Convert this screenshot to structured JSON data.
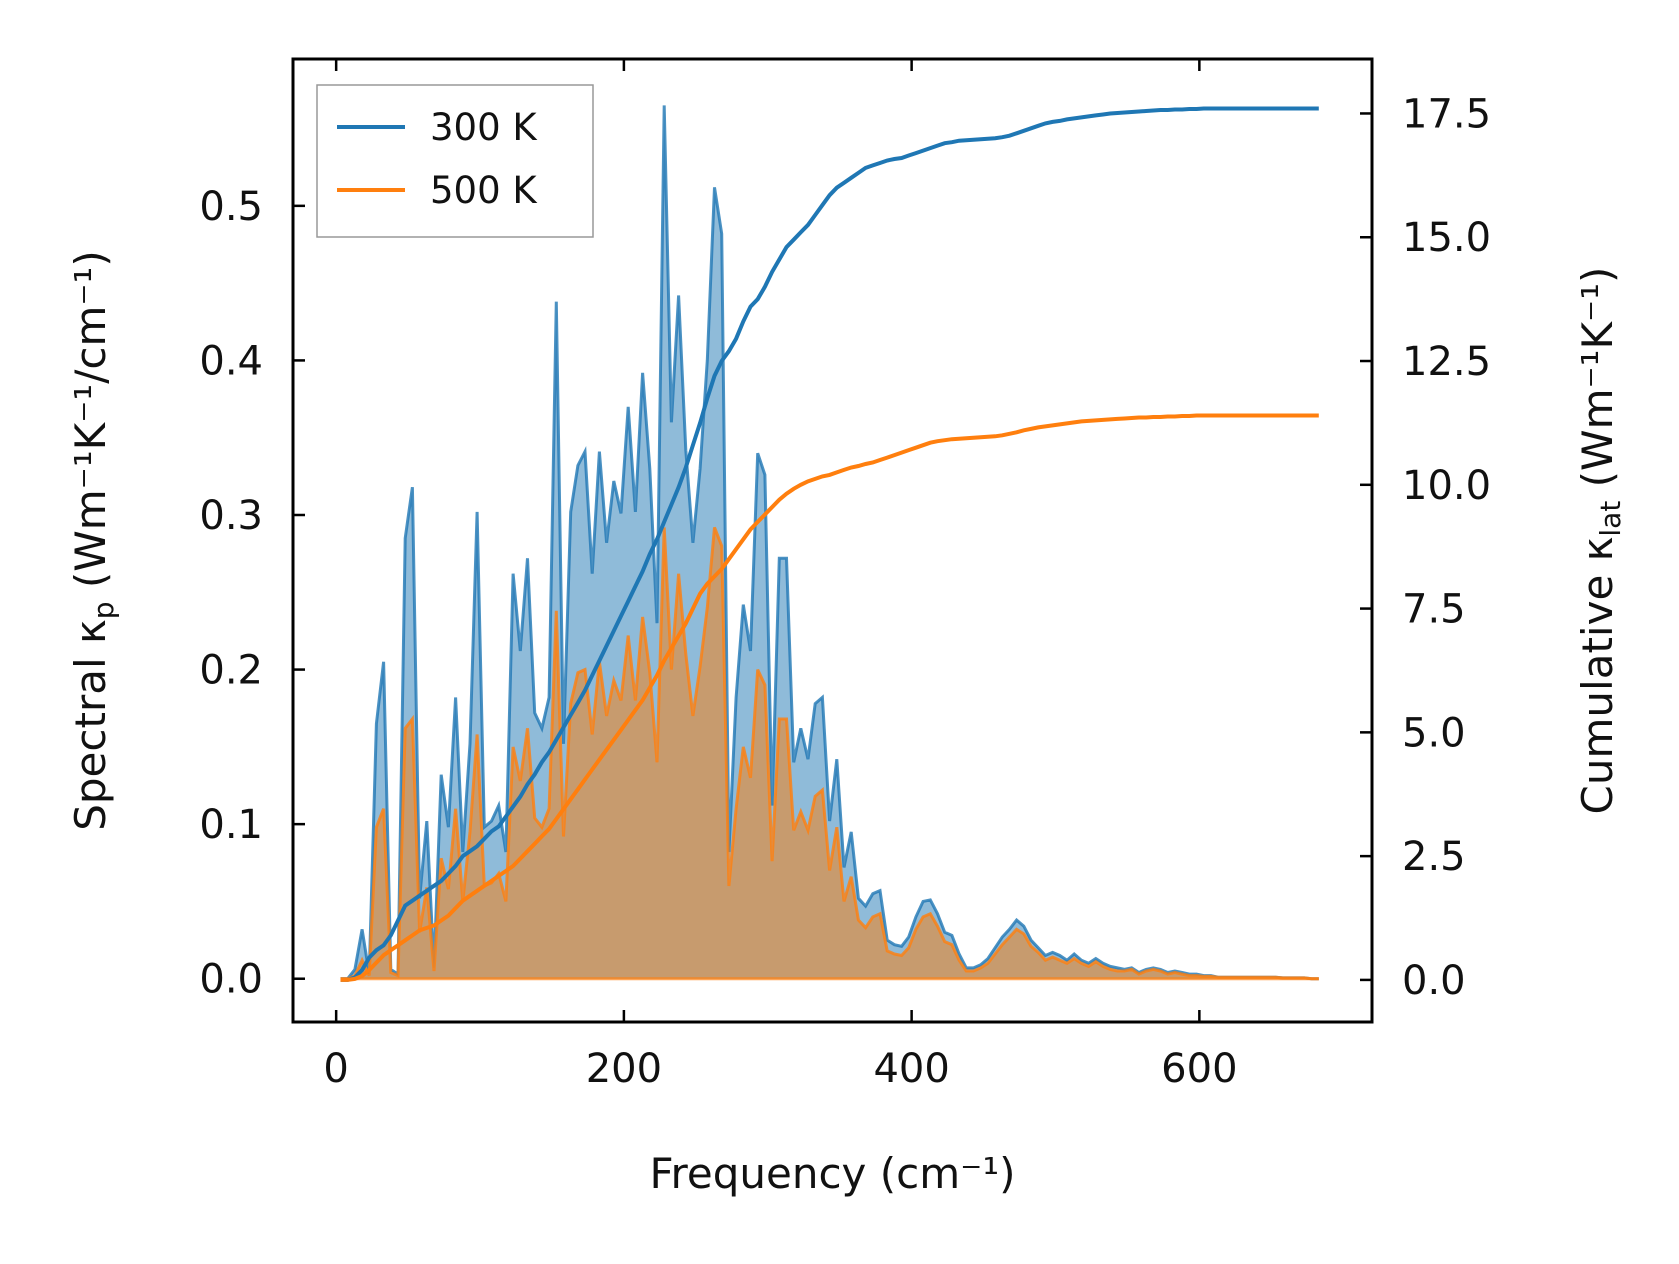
{
  "chart_data": {
    "type": "line",
    "xlabel": "Frequency (cm⁻¹)",
    "ylabel_left": {
      "pre": "Spectral κ",
      "sub": "p",
      "post": " (Wm⁻¹K⁻¹/cm⁻¹)"
    },
    "ylabel_right": {
      "pre": "Cumulative κ",
      "sub": "lat",
      "post": " (Wm⁻¹K⁻¹)"
    },
    "xlim": [
      -30,
      720
    ],
    "ylim_left": [
      -0.028,
      0.595
    ],
    "ylim_right": [
      -0.85,
      18.6
    ],
    "xticks": [
      0,
      200,
      400,
      600
    ],
    "xtick_labels": [
      "0",
      "200",
      "400",
      "600"
    ],
    "yticks_left": [
      0.0,
      0.1,
      0.2,
      0.3,
      0.4,
      0.5
    ],
    "ytick_labels_left": [
      "0.0",
      "0.1",
      "0.2",
      "0.3",
      "0.4",
      "0.5"
    ],
    "yticks_right": [
      0.0,
      2.5,
      5.0,
      7.5,
      10.0,
      12.5,
      15.0,
      17.5
    ],
    "ytick_labels_right": [
      "0.0",
      "2.5",
      "5.0",
      "7.5",
      "10.0",
      "12.5",
      "15.0",
      "17.5"
    ],
    "grid": false,
    "legend": {
      "placement": "top-left",
      "entries": [
        "300 K",
        "500 K"
      ]
    },
    "colors": {
      "300 K": "#1f77b4",
      "500 K": "#ff7f0e",
      "fill_500": "#c79b6e"
    },
    "x": [
      3,
      8,
      13,
      18,
      23,
      28,
      33,
      38,
      43,
      48,
      53,
      58,
      63,
      68,
      73,
      78,
      83,
      88,
      93,
      98,
      103,
      108,
      113,
      118,
      123,
      128,
      133,
      138,
      143,
      148,
      153,
      158,
      163,
      168,
      173,
      178,
      183,
      188,
      193,
      198,
      203,
      208,
      213,
      218,
      223,
      228,
      233,
      238,
      243,
      248,
      253,
      258,
      263,
      268,
      273,
      278,
      283,
      288,
      293,
      298,
      303,
      308,
      313,
      318,
      323,
      328,
      333,
      338,
      343,
      348,
      353,
      358,
      363,
      368,
      373,
      378,
      383,
      388,
      393,
      398,
      403,
      408,
      413,
      418,
      423,
      428,
      433,
      438,
      443,
      448,
      453,
      458,
      463,
      468,
      473,
      478,
      483,
      488,
      493,
      498,
      503,
      508,
      513,
      518,
      523,
      528,
      533,
      538,
      543,
      548,
      553,
      558,
      563,
      568,
      573,
      578,
      583,
      588,
      593,
      598,
      603,
      608,
      613,
      618,
      623,
      628,
      633,
      638,
      643,
      648,
      653,
      658,
      663,
      668,
      673,
      678,
      683
    ],
    "series": [
      {
        "name": "300 K",
        "spectral": [
          0,
          0,
          0.006,
          0.032,
          0.003,
          0.165,
          0.205,
          0.006,
          0.003,
          0.285,
          0.318,
          0.052,
          0.102,
          0.007,
          0.132,
          0.098,
          0.182,
          0.082,
          0.152,
          0.302,
          0.098,
          0.102,
          0.112,
          0.082,
          0.262,
          0.212,
          0.272,
          0.172,
          0.162,
          0.182,
          0.438,
          0.152,
          0.302,
          0.332,
          0.341,
          0.262,
          0.341,
          0.282,
          0.322,
          0.301,
          0.37,
          0.302,
          0.392,
          0.33,
          0.23,
          0.565,
          0.36,
          0.442,
          0.342,
          0.282,
          0.33,
          0.4,
          0.512,
          0.482,
          0.082,
          0.182,
          0.242,
          0.212,
          0.34,
          0.326,
          0.112,
          0.272,
          0.272,
          0.14,
          0.162,
          0.142,
          0.178,
          0.182,
          0.102,
          0.142,
          0.072,
          0.095,
          0.052,
          0.047,
          0.055,
          0.057,
          0.025,
          0.022,
          0.021,
          0.027,
          0.04,
          0.05,
          0.051,
          0.042,
          0.03,
          0.028,
          0.016,
          0.007,
          0.007,
          0.009,
          0.013,
          0.02,
          0.027,
          0.032,
          0.038,
          0.034,
          0.025,
          0.02,
          0.015,
          0.017,
          0.015,
          0.012,
          0.016,
          0.012,
          0.01,
          0.013,
          0.01,
          0.008,
          0.007,
          0.006,
          0.007,
          0.004,
          0.006,
          0.007,
          0.006,
          0.004,
          0.005,
          0.004,
          0.003,
          0.003,
          0.002,
          0.002,
          0.001,
          0.001,
          0.001,
          0.001,
          0.001,
          0.001,
          0.001,
          0.001,
          0.001,
          0.0005,
          0.0005,
          0.0005,
          0.0005,
          0,
          0
        ],
        "cumulative": [
          0,
          0,
          0.05,
          0.2,
          0.45,
          0.6,
          0.7,
          0.9,
          1.2,
          1.5,
          1.6,
          1.7,
          1.8,
          1.9,
          2.0,
          2.15,
          2.3,
          2.5,
          2.6,
          2.7,
          2.85,
          3.0,
          3.1,
          3.3,
          3.5,
          3.7,
          3.95,
          4.15,
          4.4,
          4.6,
          4.85,
          5.1,
          5.35,
          5.6,
          5.85,
          6.15,
          6.45,
          6.75,
          7.05,
          7.35,
          7.65,
          7.95,
          8.25,
          8.6,
          8.9,
          9.25,
          9.6,
          9.95,
          10.35,
          10.8,
          11.25,
          11.75,
          12.2,
          12.5,
          12.7,
          12.95,
          13.3,
          13.6,
          13.75,
          14.0,
          14.3,
          14.55,
          14.8,
          14.95,
          15.1,
          15.25,
          15.45,
          15.65,
          15.85,
          16.0,
          16.1,
          16.2,
          16.3,
          16.4,
          16.45,
          16.5,
          16.55,
          16.58,
          16.6,
          16.65,
          16.7,
          16.75,
          16.8,
          16.85,
          16.9,
          16.92,
          16.95,
          16.96,
          16.97,
          16.98,
          16.99,
          17.0,
          17.02,
          17.05,
          17.1,
          17.15,
          17.2,
          17.25,
          17.3,
          17.33,
          17.35,
          17.38,
          17.4,
          17.42,
          17.44,
          17.46,
          17.48,
          17.5,
          17.51,
          17.52,
          17.53,
          17.54,
          17.55,
          17.56,
          17.57,
          17.57,
          17.58,
          17.58,
          17.59,
          17.59,
          17.6,
          17.6,
          17.6,
          17.6,
          17.6,
          17.6,
          17.6,
          17.6,
          17.6,
          17.6,
          17.6,
          17.6,
          17.6,
          17.6,
          17.6,
          17.6,
          17.6
        ]
      },
      {
        "name": "500 K",
        "spectral": [
          0,
          0,
          0.002,
          0.012,
          0.002,
          0.098,
          0.11,
          0.004,
          0.002,
          0.162,
          0.168,
          0.03,
          0.059,
          0.005,
          0.078,
          0.058,
          0.11,
          0.05,
          0.095,
          0.158,
          0.06,
          0.062,
          0.068,
          0.05,
          0.15,
          0.128,
          0.162,
          0.104,
          0.098,
          0.11,
          0.238,
          0.092,
          0.178,
          0.198,
          0.2,
          0.158,
          0.205,
          0.17,
          0.193,
          0.18,
          0.222,
          0.18,
          0.234,
          0.198,
          0.14,
          0.292,
          0.2,
          0.262,
          0.21,
          0.17,
          0.202,
          0.24,
          0.292,
          0.28,
          0.06,
          0.11,
          0.15,
          0.13,
          0.2,
          0.19,
          0.076,
          0.168,
          0.168,
          0.096,
          0.108,
          0.096,
          0.118,
          0.122,
          0.07,
          0.098,
          0.05,
          0.066,
          0.038,
          0.033,
          0.04,
          0.042,
          0.018,
          0.016,
          0.015,
          0.02,
          0.032,
          0.04,
          0.042,
          0.034,
          0.024,
          0.022,
          0.012,
          0.005,
          0.005,
          0.007,
          0.01,
          0.016,
          0.022,
          0.027,
          0.032,
          0.029,
          0.021,
          0.017,
          0.012,
          0.014,
          0.012,
          0.01,
          0.013,
          0.01,
          0.008,
          0.011,
          0.008,
          0.006,
          0.005,
          0.005,
          0.006,
          0.003,
          0.005,
          0.006,
          0.005,
          0.003,
          0.004,
          0.003,
          0.002,
          0.002,
          0.0015,
          0.0015,
          0.001,
          0.001,
          0.001,
          0.001,
          0.001,
          0.001,
          0.001,
          0.001,
          0.001,
          0.0005,
          0.0005,
          0.0005,
          0.0005,
          0,
          0
        ],
        "cumulative": [
          0,
          0,
          0.02,
          0.08,
          0.2,
          0.35,
          0.5,
          0.6,
          0.7,
          0.8,
          0.9,
          1.0,
          1.05,
          1.1,
          1.2,
          1.3,
          1.45,
          1.6,
          1.7,
          1.8,
          1.9,
          2.0,
          2.1,
          2.2,
          2.3,
          2.45,
          2.6,
          2.75,
          2.9,
          3.05,
          3.25,
          3.45,
          3.65,
          3.85,
          4.05,
          4.25,
          4.45,
          4.65,
          4.85,
          5.05,
          5.25,
          5.45,
          5.65,
          5.9,
          6.15,
          6.45,
          6.7,
          6.95,
          7.2,
          7.5,
          7.8,
          8.0,
          8.15,
          8.3,
          8.5,
          8.7,
          8.9,
          9.1,
          9.25,
          9.4,
          9.55,
          9.7,
          9.82,
          9.92,
          10.0,
          10.07,
          10.12,
          10.17,
          10.2,
          10.25,
          10.3,
          10.35,
          10.38,
          10.42,
          10.45,
          10.5,
          10.55,
          10.6,
          10.65,
          10.7,
          10.75,
          10.8,
          10.85,
          10.88,
          10.9,
          10.92,
          10.93,
          10.94,
          10.95,
          10.96,
          10.97,
          10.98,
          11.0,
          11.03,
          11.06,
          11.1,
          11.13,
          11.16,
          11.18,
          11.2,
          11.22,
          11.24,
          11.26,
          11.28,
          11.29,
          11.3,
          11.31,
          11.32,
          11.33,
          11.34,
          11.35,
          11.36,
          11.36,
          11.37,
          11.37,
          11.38,
          11.38,
          11.39,
          11.39,
          11.4,
          11.4,
          11.4,
          11.4,
          11.4,
          11.4,
          11.4,
          11.4,
          11.4,
          11.4,
          11.4,
          11.4,
          11.4,
          11.4,
          11.4,
          11.4,
          11.4,
          11.4
        ]
      }
    ]
  }
}
